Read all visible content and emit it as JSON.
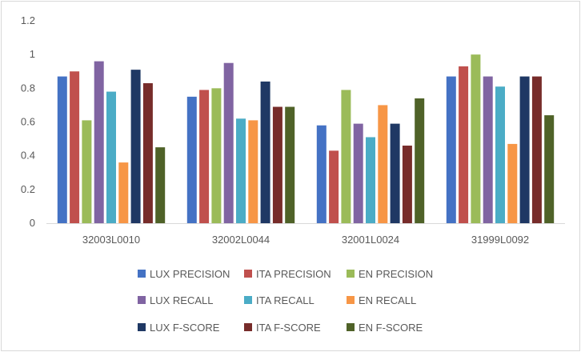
{
  "chart_data": {
    "type": "bar",
    "categories": [
      "32003L0010",
      "32002L0044",
      "32001L0024",
      "31999L0092"
    ],
    "series": [
      {
        "name": "LUX PRECISION",
        "color": "#4472c4",
        "values": [
          0.87,
          0.75,
          0.58,
          0.87
        ]
      },
      {
        "name": "ITA PRECISION",
        "color": "#c0504d",
        "values": [
          0.9,
          0.79,
          0.43,
          0.93
        ]
      },
      {
        "name": "EN PRECISION",
        "color": "#9bbb59",
        "values": [
          0.61,
          0.8,
          0.79,
          1.0
        ]
      },
      {
        "name": "LUX RECALL",
        "color": "#8064a2",
        "values": [
          0.96,
          0.95,
          0.59,
          0.87
        ]
      },
      {
        "name": "ITA RECALL",
        "color": "#4bacc6",
        "values": [
          0.78,
          0.62,
          0.51,
          0.81
        ]
      },
      {
        "name": "EN RECALL",
        "color": "#f79646",
        "values": [
          0.36,
          0.61,
          0.7,
          0.47
        ]
      },
      {
        "name": "LUX F-SCORE",
        "color": "#1f3864",
        "values": [
          0.91,
          0.84,
          0.59,
          0.87
        ]
      },
      {
        "name": "ITA F-SCORE",
        "color": "#772c2a",
        "values": [
          0.83,
          0.69,
          0.46,
          0.87
        ]
      },
      {
        "name": "EN F-SCORE",
        "color": "#4f6228",
        "values": [
          0.45,
          0.69,
          0.74,
          0.64
        ]
      }
    ],
    "y_ticks": [
      "0",
      "0.2",
      "0.4",
      "0.6",
      "0.8",
      "1",
      "1.2"
    ],
    "ylim": [
      0,
      1.2
    ],
    "grid": false,
    "legend_position": "bottom"
  }
}
